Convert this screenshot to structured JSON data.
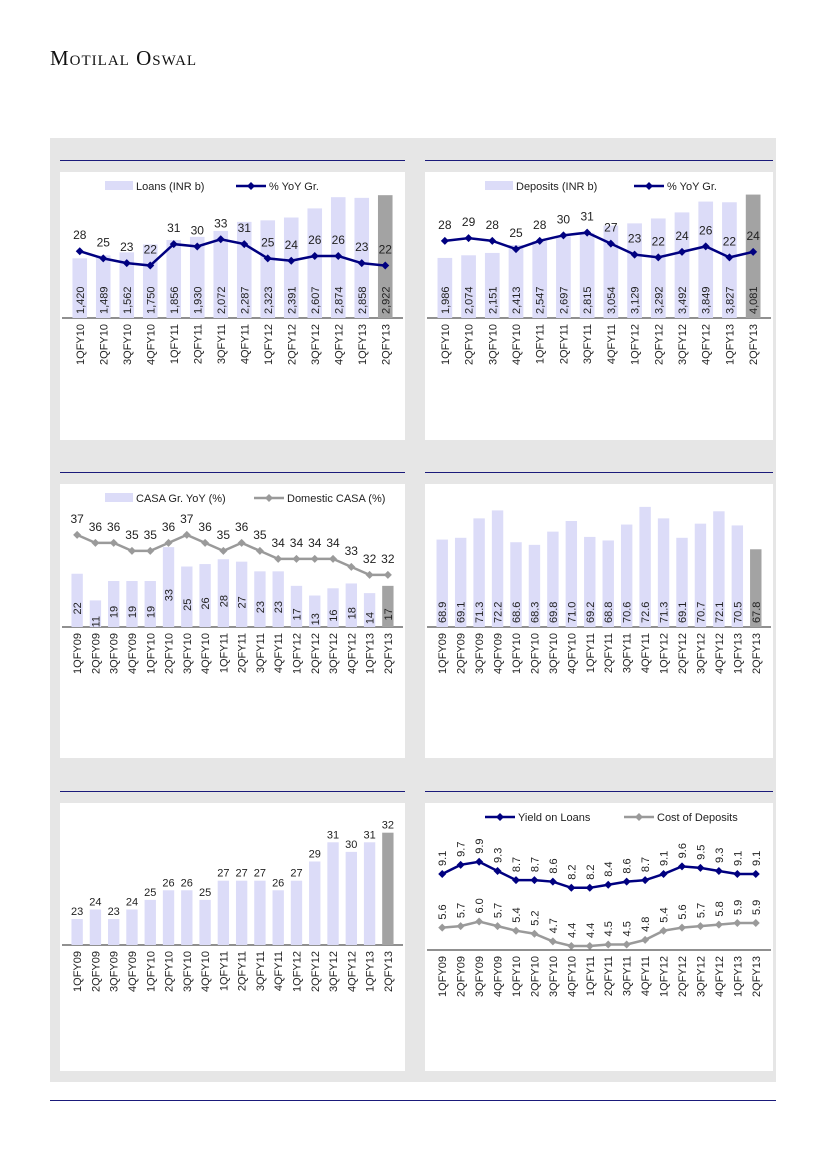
{
  "header": {
    "brand": "Motilal Oswal"
  },
  "colors": {
    "bar": "#dcdcf8",
    "bar_last": "#a3a3a3",
    "navy": "#000080",
    "grey": "#9a9a9a"
  },
  "chart_data": [
    {
      "type": "bar+line",
      "id": "loans",
      "legend": [
        "Loans (INR b)",
        "% YoY Gr."
      ],
      "categories": [
        "1QFY10",
        "2QFY10",
        "3QFY10",
        "4QFY10",
        "1QFY11",
        "2QFY11",
        "3QFY11",
        "4QFY11",
        "1QFY12",
        "2QFY12",
        "3QFY12",
        "4QFY12",
        "1QFY13",
        "2QFY13"
      ],
      "bars": {
        "name": "Loans (INR b)",
        "values": [
          1420,
          1489,
          1562,
          1750,
          1856,
          1930,
          2072,
          2287,
          2323,
          2391,
          2607,
          2874,
          2858,
          2922
        ],
        "labels": [
          "1,420",
          "1,489",
          "1,562",
          "1,750",
          "1,856",
          "1,930",
          "2,072",
          "2,287",
          "2,323",
          "2,391",
          "2,607",
          "2,874",
          "2,858",
          "2,922"
        ],
        "ylim": [
          0,
          2950
        ]
      },
      "lines": [
        {
          "name": "% YoY Gr.",
          "color": "navy",
          "values": [
            28,
            25,
            23,
            22,
            31,
            30,
            33,
            31,
            25,
            24,
            26,
            26,
            23,
            22
          ],
          "ylim": [
            0,
            52
          ]
        }
      ]
    },
    {
      "type": "bar+line",
      "id": "deposits",
      "legend": [
        "Deposits (INR b)",
        "% YoY Gr."
      ],
      "categories": [
        "1QFY10",
        "2QFY10",
        "3QFY10",
        "4QFY10",
        "1QFY11",
        "2QFY11",
        "3QFY11",
        "4QFY11",
        "1QFY12",
        "2QFY12",
        "3QFY12",
        "4QFY12",
        "1QFY13",
        "2QFY13"
      ],
      "bars": {
        "name": "Deposits (INR b)",
        "values": [
          1986,
          2074,
          2151,
          2413,
          2547,
          2697,
          2815,
          3054,
          3129,
          3292,
          3492,
          3849,
          3827,
          4081
        ],
        "labels": [
          "1,986",
          "2,074",
          "2,151",
          "2,413",
          "2,547",
          "2,697",
          "2,815",
          "3,054",
          "3,129",
          "3,292",
          "3,492",
          "3,849",
          "3,827",
          "4,081"
        ],
        "ylim": [
          0,
          4100
        ]
      },
      "lines": [
        {
          "name": "% YoY Gr.",
          "color": "navy",
          "values": [
            28,
            29,
            28,
            25,
            28,
            30,
            31,
            27,
            23,
            22,
            24,
            26,
            22,
            24
          ],
          "ylim": [
            0,
            45
          ]
        }
      ]
    },
    {
      "type": "bar+line",
      "id": "casa",
      "legend": [
        "CASA Gr. YoY (%)",
        "Domestic CASA (%)"
      ],
      "categories": [
        "1QFY09",
        "2QFY09",
        "3QFY09",
        "4QFY09",
        "1QFY10",
        "2QFY10",
        "3QFY10",
        "4QFY10",
        "1QFY11",
        "2QFY11",
        "3QFY11",
        "4QFY11",
        "1QFY12",
        "2QFY12",
        "3QFY12",
        "4QFY12",
        "1QFY13",
        "2QFY13"
      ],
      "bars": {
        "name": "CASA Gr. YoY (%)",
        "values": [
          22,
          11,
          19,
          19,
          19,
          33,
          25,
          26,
          28,
          27,
          23,
          23,
          17,
          13,
          16,
          18,
          14,
          17
        ],
        "labels": [
          "22",
          "11",
          "19",
          "19",
          "19",
          "33",
          "25",
          "26",
          "28",
          "27",
          "23",
          "23",
          "17",
          "13",
          "16",
          "18",
          "14",
          "17"
        ],
        "ylim": [
          0,
          50
        ]
      },
      "lines": [
        {
          "name": "Domestic CASA (%)",
          "color": "grey",
          "values": [
            37,
            36,
            36,
            35,
            35,
            36,
            37,
            36,
            35,
            36,
            35,
            34,
            34,
            34,
            34,
            33,
            32,
            32
          ],
          "ylim": [
            25.5,
            40.6
          ]
        }
      ]
    },
    {
      "type": "bar",
      "id": "cd-ratio",
      "legend": [],
      "categories": [
        "1QFY09",
        "2QFY09",
        "3QFY09",
        "4QFY09",
        "1QFY10",
        "2QFY10",
        "3QFY10",
        "4QFY10",
        "1QFY11",
        "2QFY11",
        "3QFY11",
        "4QFY11",
        "1QFY12",
        "2QFY12",
        "3QFY12",
        "4QFY12",
        "1QFY13",
        "2QFY13"
      ],
      "bars": {
        "name": "",
        "values": [
          68.9,
          69.1,
          71.3,
          72.2,
          68.6,
          68.3,
          69.8,
          71.0,
          69.2,
          68.8,
          70.6,
          72.6,
          71.3,
          69.1,
          70.7,
          72.1,
          70.5,
          67.8
        ],
        "labels": [
          "68.9",
          "69.1",
          "71.3",
          "72.2",
          "68.6",
          "68.3",
          "69.8",
          "71.0",
          "69.2",
          "68.8",
          "70.6",
          "72.6",
          "71.3",
          "69.1",
          "70.7",
          "72.1",
          "70.5",
          "67.8"
        ],
        "ylim": [
          59,
          72.7
        ]
      },
      "lines": []
    },
    {
      "type": "bar",
      "id": "capital",
      "legend": [],
      "categories": [
        "1QFY09",
        "2QFY09",
        "3QFY09",
        "4QFY09",
        "1QFY10",
        "2QFY10",
        "3QFY10",
        "4QFY10",
        "1QFY11",
        "2QFY11",
        "3QFY11",
        "4QFY11",
        "1QFY12",
        "2QFY12",
        "3QFY12",
        "4QFY12",
        "1QFY13",
        "2QFY13"
      ],
      "bars": {
        "name": "",
        "values": [
          23,
          24,
          23,
          24,
          25,
          26,
          26,
          25,
          27,
          27,
          27,
          26,
          27,
          29,
          31,
          30,
          31,
          32
        ],
        "labels": [
          "23",
          "24",
          "23",
          "24",
          "25",
          "26",
          "26",
          "25",
          "27",
          "27",
          "27",
          "26",
          "27",
          "29",
          "31",
          "30",
          "31",
          "32"
        ],
        "ylim": [
          20.3,
          32.8
        ]
      },
      "lines": []
    },
    {
      "type": "line",
      "id": "yield-cost",
      "legend": [
        "Yield on Loans",
        "Cost of Deposits"
      ],
      "categories": [
        "1QFY09",
        "2QFY09",
        "3QFY09",
        "4QFY09",
        "1QFY10",
        "2QFY10",
        "3QFY10",
        "4QFY10",
        "1QFY11",
        "2QFY11",
        "3QFY11",
        "4QFY11",
        "1QFY12",
        "2QFY12",
        "3QFY12",
        "4QFY12",
        "1QFY13",
        "2QFY13"
      ],
      "bars": null,
      "lines": [
        {
          "name": "Yield on Loans",
          "color": "navy",
          "values": [
            9.1,
            9.7,
            9.9,
            9.3,
            8.7,
            8.7,
            8.6,
            8.2,
            8.2,
            8.4,
            8.6,
            8.7,
            9.1,
            9.6,
            9.5,
            9.3,
            9.1,
            9.1
          ],
          "labels": [
            "9.1",
            "9.7",
            "9.9",
            "9.3",
            "8.7",
            "8.7",
            "8.6",
            "8.2",
            "8.2",
            "8.4",
            "8.6",
            "8.7",
            "9.1",
            "9.6",
            "9.5",
            "9.3",
            "9.1",
            "9.1"
          ],
          "ylim": [
            4.14,
            12.3
          ]
        },
        {
          "name": "Cost of Deposits",
          "color": "grey",
          "values": [
            5.6,
            5.7,
            6.0,
            5.7,
            5.4,
            5.2,
            4.7,
            4.4,
            4.4,
            4.5,
            4.5,
            4.8,
            5.4,
            5.6,
            5.7,
            5.8,
            5.9,
            5.9
          ],
          "labels": [
            "5.6",
            "5.7",
            "6.0",
            "5.7",
            "5.4",
            "5.2",
            "4.7",
            "4.4",
            "4.4",
            "4.5",
            "4.5",
            "4.8",
            "5.4",
            "5.6",
            "5.7",
            "5.8",
            "5.9",
            "5.9"
          ],
          "ylim": [
            4.14,
            12.3
          ]
        }
      ]
    }
  ]
}
